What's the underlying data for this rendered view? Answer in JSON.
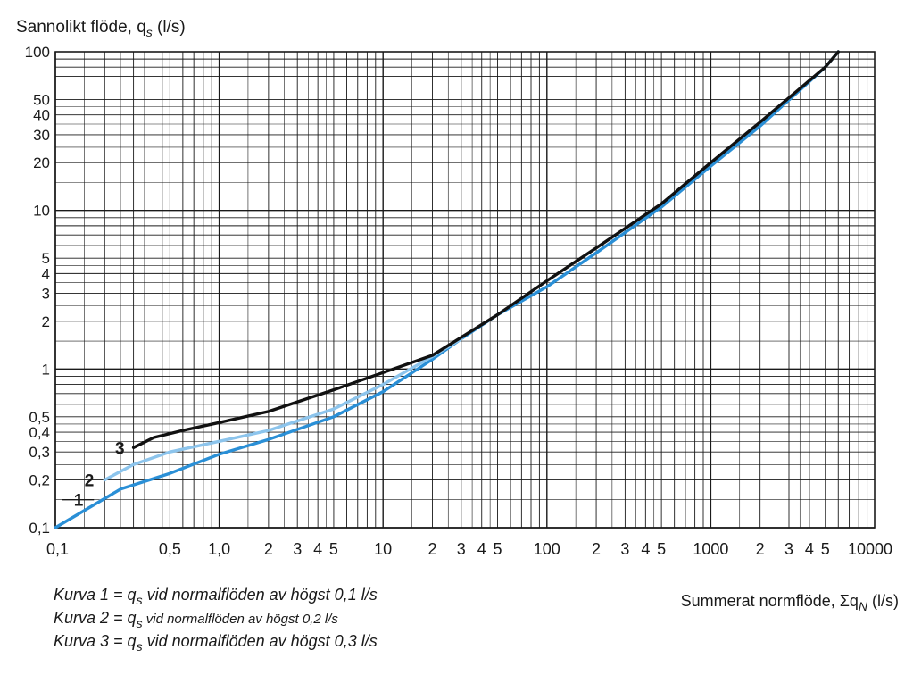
{
  "chart_data": {
    "type": "line",
    "title": "Sannolikt flöde, q",
    "title_sub": "s",
    "title_unit": " (l/s)",
    "xlabel": "Summerat normflöde, Σq",
    "xlabel_sub": "N",
    "xlabel_unit": " (l/s)",
    "xscale": "log",
    "yscale": "log",
    "xlim": [
      0.1,
      10000
    ],
    "ylim": [
      0.1,
      100
    ],
    "grid": true,
    "x_tick_labels": [
      {
        "value": 0.1,
        "label": "0,1"
      },
      {
        "value": 0.5,
        "label": "0,5"
      },
      {
        "value": 1,
        "label": "1,0"
      },
      {
        "value": 2,
        "label": "2"
      },
      {
        "value": 3,
        "label": "3"
      },
      {
        "value": 4,
        "label": "4"
      },
      {
        "value": 5,
        "label": "5"
      },
      {
        "value": 10,
        "label": "10"
      },
      {
        "value": 20,
        "label": "2"
      },
      {
        "value": 30,
        "label": "3"
      },
      {
        "value": 40,
        "label": "4"
      },
      {
        "value": 50,
        "label": "5"
      },
      {
        "value": 100,
        "label": "100"
      },
      {
        "value": 200,
        "label": "2"
      },
      {
        "value": 300,
        "label": "3"
      },
      {
        "value": 400,
        "label": "4"
      },
      {
        "value": 500,
        "label": "5"
      },
      {
        "value": 1000,
        "label": "1000"
      },
      {
        "value": 2000,
        "label": "2"
      },
      {
        "value": 3000,
        "label": "3"
      },
      {
        "value": 4000,
        "label": "4"
      },
      {
        "value": 5000,
        "label": "5"
      },
      {
        "value": 10000,
        "label": "10000"
      }
    ],
    "y_tick_labels": [
      {
        "value": 0.1,
        "label": "0,1"
      },
      {
        "value": 0.2,
        "label": "0,2"
      },
      {
        "value": 0.3,
        "label": "0,3"
      },
      {
        "value": 0.4,
        "label": "0,4"
      },
      {
        "value": 0.5,
        "label": "0,5"
      },
      {
        "value": 1,
        "label": "1"
      },
      {
        "value": 2,
        "label": "2"
      },
      {
        "value": 3,
        "label": "3"
      },
      {
        "value": 4,
        "label": "4"
      },
      {
        "value": 5,
        "label": "5"
      },
      {
        "value": 10,
        "label": "10"
      },
      {
        "value": 20,
        "label": "20"
      },
      {
        "value": 30,
        "label": "30"
      },
      {
        "value": 40,
        "label": "40"
      },
      {
        "value": 50,
        "label": "50"
      },
      {
        "value": 100,
        "label": "100"
      }
    ],
    "series": [
      {
        "name": "1",
        "color": "#2a8fd6",
        "x": [
          0.1,
          0.25,
          0.5,
          1,
          2,
          5,
          10,
          20,
          30,
          50,
          100,
          200,
          500,
          1000,
          2000,
          5000,
          6000
        ],
        "y": [
          0.1,
          0.175,
          0.22,
          0.29,
          0.36,
          0.5,
          0.72,
          1.15,
          1.55,
          2.2,
          3.3,
          5.4,
          10.5,
          19,
          34,
          80,
          100
        ]
      },
      {
        "name": "2",
        "color": "#8cc4ec",
        "x": [
          0.2,
          0.3,
          0.5,
          1,
          2,
          5,
          10,
          20,
          30
        ],
        "y": [
          0.2,
          0.25,
          0.3,
          0.35,
          0.41,
          0.56,
          0.8,
          1.2,
          1.55
        ]
      },
      {
        "name": "3",
        "color": "#111111",
        "x": [
          0.3,
          0.4,
          0.6,
          1,
          2,
          5,
          10,
          20,
          50,
          100,
          200,
          500,
          1000,
          2000,
          5000,
          6000
        ],
        "y": [
          0.32,
          0.37,
          0.41,
          0.46,
          0.54,
          0.74,
          0.95,
          1.22,
          2.2,
          3.6,
          5.8,
          11,
          20,
          36,
          80,
          100
        ]
      }
    ],
    "curve_markers": [
      {
        "label": "1",
        "x": 0.2,
        "y": 0.15
      },
      {
        "label": "2",
        "x": 0.2,
        "y": 0.2
      },
      {
        "label": "3",
        "x": 0.3,
        "y": 0.32
      }
    ],
    "legend": [
      {
        "prefix": "Kurva 1 = q",
        "sub": "s",
        "text": " vid normalflöden av högst 0,1 l/s"
      },
      {
        "prefix": "Kurva 2 = q",
        "sub": "s",
        "text": " vid normalflöden av högst 0,2 l/s"
      },
      {
        "prefix": "Kurva 3 = q",
        "sub": "s",
        "text": " vid normalflöden av högst 0,3 l/s"
      }
    ]
  }
}
